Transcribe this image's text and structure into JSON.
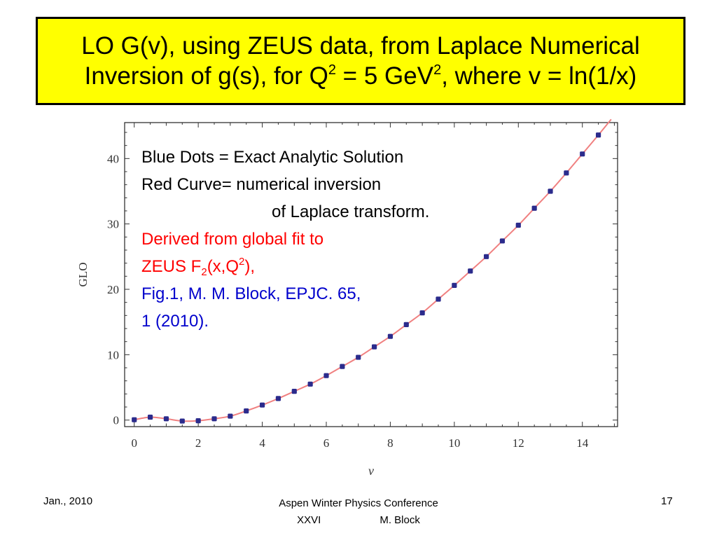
{
  "title": {
    "line1": "LO  G(v), using ZEUS data, from Laplace Numerical",
    "line2_a": "Inversion of g(s), for Q",
    "line2_sup1": "2",
    "line2_b": " = 5 GeV",
    "line2_sup2": "2",
    "line2_c": ", where v = ln(1/x)"
  },
  "annotation": {
    "line1": "Blue Dots = Exact Analytic Solution",
    "line2": "Red Curve=  numerical inversion",
    "line3": "of Laplace transform.",
    "red_line1": "Derived from global fit to",
    "red_line2_a": "ZEUS F",
    "red_line2_sub": "2",
    "red_line2_b": "(x,Q",
    "red_line2_sup": "2",
    "red_line2_c": "),",
    "blue_line1": "Fig.1, M. M. Block, EPJC. 65,",
    "blue_line2": "1 (2010)."
  },
  "footer": {
    "date": "Jan., 2010",
    "conference": "Aspen Winter Physics Conference",
    "conf_line2_a": "XXVI",
    "conf_line2_b": "M. Block",
    "page": "17"
  },
  "colors": {
    "title_bg": "#ffff00",
    "curve": "#f08080",
    "dots": "#2b2b8c",
    "red_text": "#ff0000",
    "blue_text": "#0000cc"
  },
  "chart_data": {
    "type": "line",
    "title": "",
    "xlabel": "v",
    "ylabel": "GLO",
    "xlim": [
      -0.3,
      15.1
    ],
    "ylim": [
      -1.0,
      45.5
    ],
    "x_ticks": [
      0,
      2,
      4,
      6,
      8,
      10,
      12,
      14
    ],
    "y_ticks": [
      0,
      10,
      20,
      30,
      40
    ],
    "series": [
      {
        "name": "Blue Dots = Exact Analytic Solution",
        "kind": "scatter",
        "x": [
          0,
          0.5,
          1,
          1.5,
          2,
          2.5,
          3,
          3.5,
          4,
          4.5,
          5,
          5.5,
          6,
          6.5,
          7,
          7.5,
          8,
          8.5,
          9,
          9.5,
          10,
          10.5,
          11,
          11.5,
          12,
          12.5,
          13,
          13.5,
          14,
          14.5
        ],
        "y": [
          0.05,
          0.45,
          0.2,
          -0.15,
          -0.1,
          0.2,
          0.6,
          1.4,
          2.3,
          3.3,
          4.4,
          5.5,
          6.8,
          8.2,
          9.6,
          11.2,
          12.8,
          14.6,
          16.4,
          18.5,
          20.6,
          22.8,
          25.0,
          27.4,
          29.8,
          32.4,
          35.0,
          37.8,
          40.7,
          43.6
        ]
      },
      {
        "name": "Red Curve= numerical inversion of Laplace transform.",
        "kind": "line",
        "x": [
          0,
          0.5,
          1,
          1.5,
          2,
          2.5,
          3,
          3.5,
          4,
          4.5,
          5,
          5.5,
          6,
          6.5,
          7,
          7.5,
          8,
          8.5,
          9,
          9.5,
          10,
          10.5,
          11,
          11.5,
          12,
          12.5,
          13,
          13.5,
          14,
          14.5,
          14.9
        ],
        "y": [
          0.05,
          0.45,
          0.2,
          -0.15,
          -0.1,
          0.2,
          0.6,
          1.4,
          2.3,
          3.3,
          4.4,
          5.5,
          6.8,
          8.2,
          9.6,
          11.2,
          12.8,
          14.6,
          16.4,
          18.5,
          20.6,
          22.8,
          25.0,
          27.4,
          29.8,
          32.4,
          35.0,
          37.8,
          40.7,
          43.6,
          46.0
        ]
      }
    ]
  }
}
